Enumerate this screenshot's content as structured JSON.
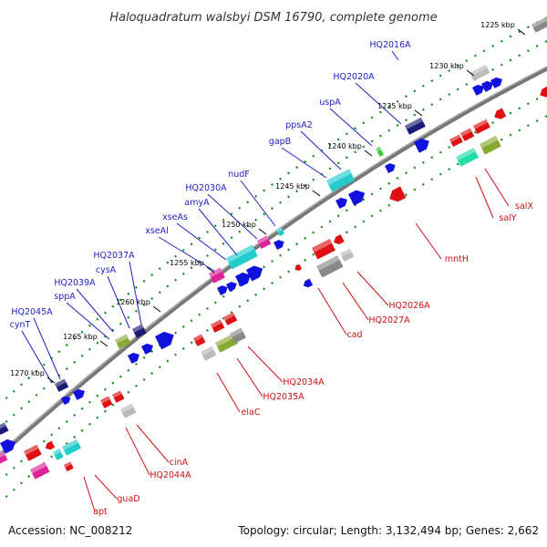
{
  "title": "Haloquadratum walsbyi DSM 16790, complete genome",
  "footer": {
    "accession": "Accession: NC_008212",
    "summary": "Topology: circular; Length: 3,132,494 bp; Genes: 2,662"
  },
  "ticks": [
    "1225 kbp",
    "1230 kbp",
    "1235 kbp",
    "1240 kbp",
    "1245 kbp",
    "1250 kbp",
    "1255 kbp",
    "1260 kbp",
    "1265 kbp",
    "1270 kbp"
  ],
  "genes_top": [
    "HQ2016A",
    "HQ2020A",
    "uspA",
    "ppsA2",
    "gapB",
    "nudF",
    "HQ2030A",
    "amyA",
    "xseAs",
    "xseAl",
    "HQ2037A",
    "cysA",
    "HQ2039A",
    "sppA",
    "HQ2045A",
    "cynT"
  ],
  "genes_bottom": [
    "salX",
    "salY",
    "mntH",
    "HQ2026A",
    "HQ2027A",
    "cad",
    "HQ2034A",
    "HQ2035A",
    "elaC",
    "cinA",
    "HQ2044A",
    "guaD",
    "apt"
  ],
  "colors": {
    "backbone": "#777777",
    "dots": "#118811",
    "forward": "#1111dd",
    "reverse": "#dd1111",
    "top_label": "#1f1fbf",
    "bottom_label": "#cc1111",
    "cyan": "#22cccc",
    "magenta": "#dd2299",
    "navy": "#1a1a77",
    "gray": "#888888",
    "olive": "#88aa33",
    "green": "#33cc33",
    "pink": "#ee3344",
    "lightgray": "#bbbbbb",
    "seafoam": "#22ddaa"
  }
}
